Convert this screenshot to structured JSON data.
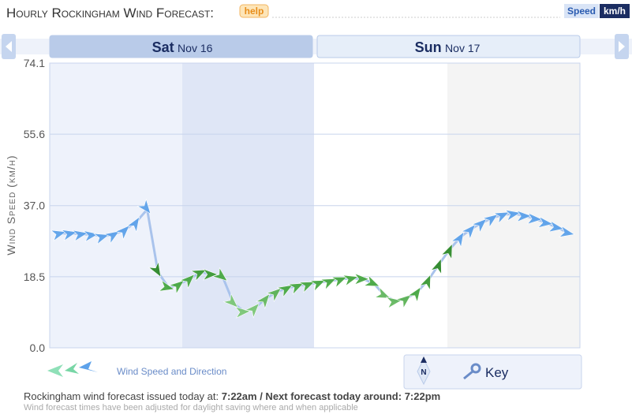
{
  "header": {
    "title": "Hourly Rockingham Wind Forecast:",
    "help": "help",
    "units_label": "Speed",
    "units": "km/h"
  },
  "chart_data": {
    "type": "line",
    "y_label": "Wind Speed (km/h)",
    "days": [
      {
        "day": "Sat",
        "date": "Nov 16"
      },
      {
        "day": "Sun",
        "date": "Nov 17"
      }
    ],
    "ylim": [
      0,
      74.1
    ],
    "yticks": [
      {
        "value": 0,
        "label": "0.0"
      },
      18.5,
      {
        "value": 37,
        "label": "37.0"
      },
      55.6,
      74.1
    ],
    "grid": true,
    "series": [
      {
        "name": "Wind Speed and Direction",
        "color": "#a9c3ec",
        "values": [
          29.8,
          29.8,
          29.6,
          29.4,
          29.0,
          29.6,
          30.8,
          32.8,
          36.0,
          19.7,
          15.6,
          16.6,
          18.1,
          19.7,
          19.1,
          18.3,
          11.5,
          9.4,
          10.5,
          12.9,
          14.6,
          15.6,
          16.2,
          16.6,
          17.0,
          17.4,
          17.9,
          18.1,
          17.9,
          16.6,
          13.5,
          12.1,
          12.9,
          14.6,
          17.7,
          21.8,
          25.7,
          28.9,
          31.0,
          32.6,
          33.9,
          34.7,
          34.9,
          34.3,
          33.5,
          32.4,
          31.2,
          29.8
        ],
        "point_colors": [
          "#5ea2ea",
          "#5ea2ea",
          "#5ea2ea",
          "#5ea2ea",
          "#5ea2ea",
          "#5ea2ea",
          "#5ea2ea",
          "#5ea2ea",
          "#5ea2ea",
          "#2f8a2a",
          "#49a843",
          "#49a843",
          "#49a843",
          "#3d9a36",
          "#3d9a36",
          "#49a843",
          "#7cc777",
          "#7cc777",
          "#7cc777",
          "#66b960",
          "#5cb356",
          "#49a843",
          "#49a843",
          "#49a843",
          "#49a843",
          "#49a843",
          "#49a843",
          "#49a843",
          "#49a843",
          "#49a843",
          "#66b960",
          "#66b960",
          "#5cb356",
          "#49a843",
          "#3d9a36",
          "#2f8a2a",
          "#2f8a2a",
          "#5ea2ea",
          "#5ea2ea",
          "#5ea2ea",
          "#5ea2ea",
          "#5ea2ea",
          "#5ea2ea",
          "#5ea2ea",
          "#5ea2ea",
          "#5ea2ea",
          "#5ea2ea",
          "#5ea2ea"
        ]
      }
    ]
  },
  "key": "Key",
  "footer": {
    "issued_text": "Rockingham wind forecast issued today at:",
    "issued_time": "7:22am",
    "next_text": "/ Next forecast today around:",
    "next_time": "7:22pm",
    "note": "Wind forecast times have been adjusted for daylight saving where and when applicable"
  }
}
